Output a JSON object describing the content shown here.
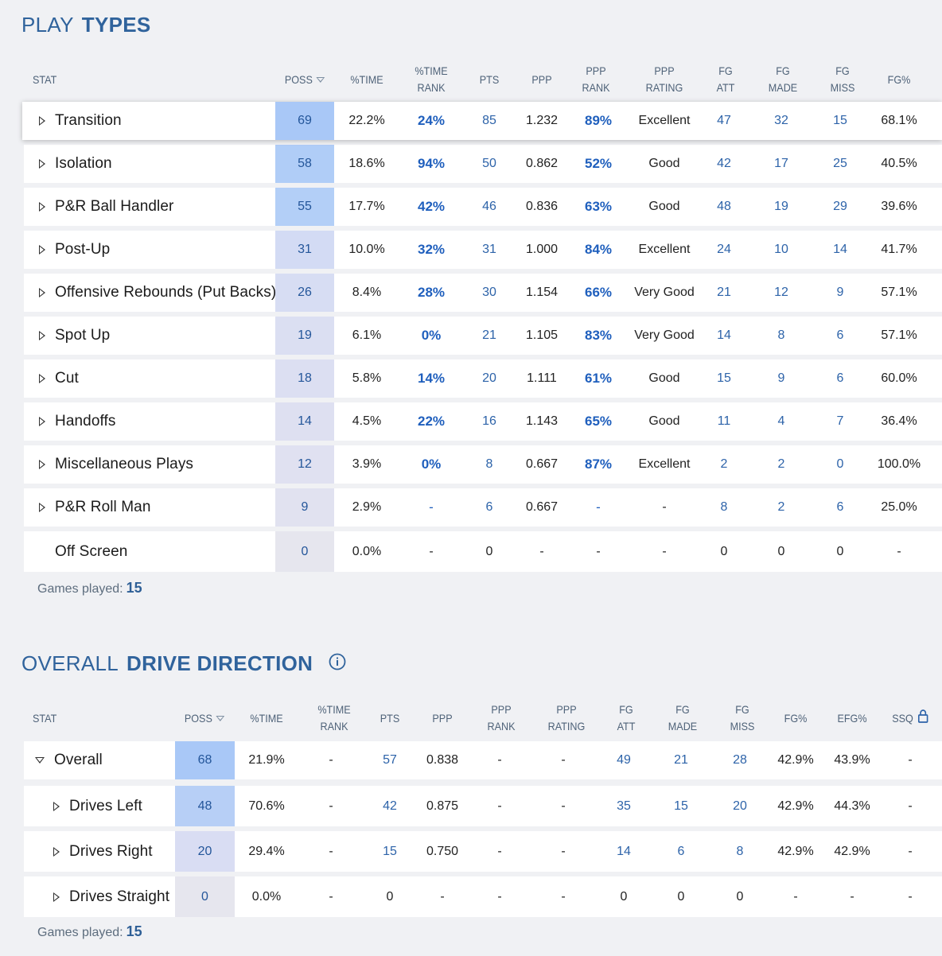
{
  "play_types": {
    "title_light": "PLAY",
    "title_bold": "TYPES",
    "headers": {
      "stat": "STAT",
      "poss": "POSS",
      "time": "%TIME",
      "time_rank": "%TIME RANK",
      "pts": "PTS",
      "ppp": "PPP",
      "ppp_rank": "PPP RANK",
      "ppp_rating": "PPP RATING",
      "fg_att": "FG ATT",
      "fg_made": "FG MADE",
      "fg_miss": "FG MISS",
      "fg_pct": "FG%"
    },
    "rows": [
      {
        "name": "Transition",
        "poss": "69",
        "time": "22.2%",
        "time_rank": "24%",
        "pts": "85",
        "ppp": "1.232",
        "ppp_rank": "89%",
        "rating": "Excellent",
        "fg_att": "47",
        "fg_made": "32",
        "fg_miss": "15",
        "fg_pct": "68.1%",
        "poss_color": "#a9c8f7"
      },
      {
        "name": "Isolation",
        "poss": "58",
        "time": "18.6%",
        "time_rank": "94%",
        "pts": "50",
        "ppp": "0.862",
        "ppp_rank": "52%",
        "rating": "Good",
        "fg_att": "42",
        "fg_made": "17",
        "fg_miss": "25",
        "fg_pct": "40.5%",
        "poss_color": "#b0cdf7"
      },
      {
        "name": "P&R Ball Handler",
        "poss": "55",
        "time": "17.7%",
        "time_rank": "42%",
        "pts": "46",
        "ppp": "0.836",
        "ppp_rank": "63%",
        "rating": "Good",
        "fg_att": "48",
        "fg_made": "19",
        "fg_miss": "29",
        "fg_pct": "39.6%",
        "poss_color": "#b3cff7"
      },
      {
        "name": "Post-Up",
        "poss": "31",
        "time": "10.0%",
        "time_rank": "32%",
        "pts": "31",
        "ppp": "1.000",
        "ppp_rank": "84%",
        "rating": "Excellent",
        "fg_att": "24",
        "fg_made": "10",
        "fg_miss": "14",
        "fg_pct": "41.7%",
        "poss_color": "#d3dbf4"
      },
      {
        "name": "Offensive Rebounds (Put Backs)",
        "poss": "26",
        "time": "8.4%",
        "time_rank": "28%",
        "pts": "30",
        "ppp": "1.154",
        "ppp_rank": "66%",
        "rating": "Very Good",
        "fg_att": "21",
        "fg_made": "12",
        "fg_miss": "9",
        "fg_pct": "57.1%",
        "poss_color": "#d7ddf3"
      },
      {
        "name": "Spot Up",
        "poss": "19",
        "time": "6.1%",
        "time_rank": "0%",
        "pts": "21",
        "ppp": "1.105",
        "ppp_rank": "83%",
        "rating": "Very Good",
        "fg_att": "14",
        "fg_made": "8",
        "fg_miss": "6",
        "fg_pct": "57.1%",
        "poss_color": "#dbdff2"
      },
      {
        "name": "Cut",
        "poss": "18",
        "time": "5.8%",
        "time_rank": "14%",
        "pts": "20",
        "ppp": "1.111",
        "ppp_rank": "61%",
        "rating": "Good",
        "fg_att": "15",
        "fg_made": "9",
        "fg_miss": "6",
        "fg_pct": "60.0%",
        "poss_color": "#dcdff2"
      },
      {
        "name": "Handoffs",
        "poss": "14",
        "time": "4.5%",
        "time_rank": "22%",
        "pts": "16",
        "ppp": "1.143",
        "ppp_rank": "65%",
        "rating": "Good",
        "fg_att": "11",
        "fg_made": "4",
        "fg_miss": "7",
        "fg_pct": "36.4%",
        "poss_color": "#dee0f1"
      },
      {
        "name": "Miscellaneous Plays",
        "poss": "12",
        "time": "3.9%",
        "time_rank": "0%",
        "pts": "8",
        "ppp": "0.667",
        "ppp_rank": "87%",
        "rating": "Excellent",
        "fg_att": "2",
        "fg_made": "2",
        "fg_miss": "0",
        "fg_pct": "100.0%",
        "poss_color": "#e0e1f1"
      },
      {
        "name": "P&R Roll Man",
        "poss": "9",
        "time": "2.9%",
        "time_rank": "-",
        "pts": "6",
        "ppp": "0.667",
        "ppp_rank": "-",
        "rating": "-",
        "fg_att": "8",
        "fg_made": "2",
        "fg_miss": "6",
        "fg_pct": "25.0%",
        "poss_color": "#e1e2f0"
      },
      {
        "name": "Off Screen",
        "poss": "0",
        "time": "0.0%",
        "time_rank": "-",
        "pts": "0",
        "ppp": "-",
        "ppp_rank": "-",
        "rating": "-",
        "fg_att": "0",
        "fg_made": "0",
        "fg_miss": "0",
        "fg_pct": "-",
        "poss_color": "#e6e6ee"
      }
    ],
    "games_label": "Games played:",
    "games_value": "15"
  },
  "drive_direction": {
    "title_light": "OVERALL",
    "title_bold": "DRIVE DIRECTION",
    "info_icon": "info-icon",
    "headers": {
      "stat": "STAT",
      "poss": "POSS",
      "time": "%TIME",
      "time_rank": "%TIME RANK",
      "pts": "PTS",
      "ppp": "PPP",
      "ppp_rank": "PPP RANK",
      "ppp_rating": "PPP RATING",
      "fg_att": "FG ATT",
      "fg_made": "FG MADE",
      "fg_miss": "FG MISS",
      "fg_pct": "FG%",
      "efg_pct": "EFG%",
      "ssq": "SSQ",
      "ssq_icon": "lock-icon"
    },
    "rows": [
      {
        "name": "Overall",
        "expanded": true,
        "poss": "68",
        "time": "21.9%",
        "time_rank": "-",
        "pts": "57",
        "ppp": "0.838",
        "ppp_rank": "-",
        "rating": "-",
        "fg_att": "49",
        "fg_made": "21",
        "fg_miss": "28",
        "fg_pct": "42.9%",
        "efg_pct": "43.9%",
        "ssq": "-",
        "poss_color": "#a9c8f7"
      },
      {
        "name": "Drives Left",
        "expanded": false,
        "poss": "48",
        "time": "70.6%",
        "time_rank": "-",
        "pts": "42",
        "ppp": "0.875",
        "ppp_rank": "-",
        "rating": "-",
        "fg_att": "35",
        "fg_made": "15",
        "fg_miss": "20",
        "fg_pct": "42.9%",
        "efg_pct": "44.3%",
        "ssq": "-",
        "poss_color": "#b7cff6"
      },
      {
        "name": "Drives Right",
        "expanded": false,
        "poss": "20",
        "time": "29.4%",
        "time_rank": "-",
        "pts": "15",
        "ppp": "0.750",
        "ppp_rank": "-",
        "rating": "-",
        "fg_att": "14",
        "fg_made": "6",
        "fg_miss": "8",
        "fg_pct": "42.9%",
        "efg_pct": "42.9%",
        "ssq": "-",
        "poss_color": "#d9ddf3"
      },
      {
        "name": "Drives Straight",
        "expanded": false,
        "poss": "0",
        "time": "0.0%",
        "time_rank": "-",
        "pts": "0",
        "ppp": "-",
        "ppp_rank": "-",
        "rating": "-",
        "fg_att": "0",
        "fg_made": "0",
        "fg_miss": "0",
        "fg_pct": "-",
        "efg_pct": "-",
        "ssq": "-",
        "poss_color": "#e6e6ee"
      }
    ],
    "games_label": "Games played:",
    "games_value": "15"
  },
  "colors": {
    "title": "#30639c",
    "link": "#2d63a9",
    "rank": "#1f5fbd",
    "header": "#4e6278",
    "background": "#f0f1f4"
  }
}
